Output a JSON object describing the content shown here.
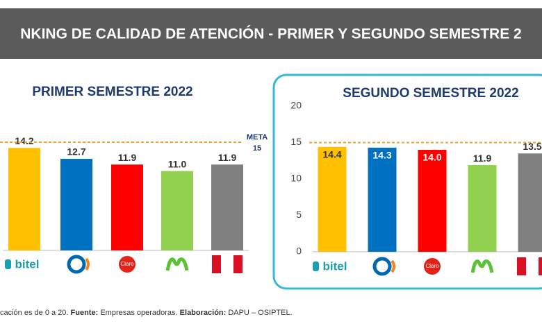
{
  "header": {
    "title": "NKING DE CALIDAD DE ATENCIÓN - PRIMER Y SEGUNDO SEMESTRE 2"
  },
  "chart_data": [
    {
      "type": "bar",
      "title": "PRIMER SEMESTRE 2022",
      "categories": [
        "bitel",
        null,
        "Claro",
        null,
        null
      ],
      "values": [
        14.2,
        12.7,
        11.9,
        11.0,
        11.9
      ],
      "value_labels": [
        "14.2",
        "12.7",
        "11.9",
        "11.0",
        "11.9"
      ],
      "colors": [
        "#ffc000",
        "#0070c0",
        "#ff0000",
        "#92d050",
        "#808080"
      ],
      "ylim": [
        0,
        20
      ],
      "target": 15,
      "target_label": "META",
      "target_value_label": "15"
    },
    {
      "type": "bar",
      "title": "SEGUNDO SEMESTRE 2022",
      "categories": [
        "bitel",
        null,
        "Claro",
        null,
        null
      ],
      "values": [
        14.4,
        14.3,
        14.0,
        11.9,
        13.5
      ],
      "value_labels": [
        "14.4",
        "14.3",
        "14.0",
        "11.9",
        "13.5"
      ],
      "colors": [
        "#ffc000",
        "#0070c0",
        "#ff0000",
        "#92d050",
        "#808080"
      ],
      "ylim": [
        0,
        20
      ],
      "yticks": [
        0,
        5,
        10,
        15,
        20
      ],
      "target": 15
    }
  ],
  "footer": {
    "scale_note": "cación es de 0 a 20.",
    "source_label": "Fuente:",
    "source": "Empresas operadoras.",
    "prepared_label": "Elaboración:",
    "prepared": "DAPU – OSIPTEL."
  }
}
